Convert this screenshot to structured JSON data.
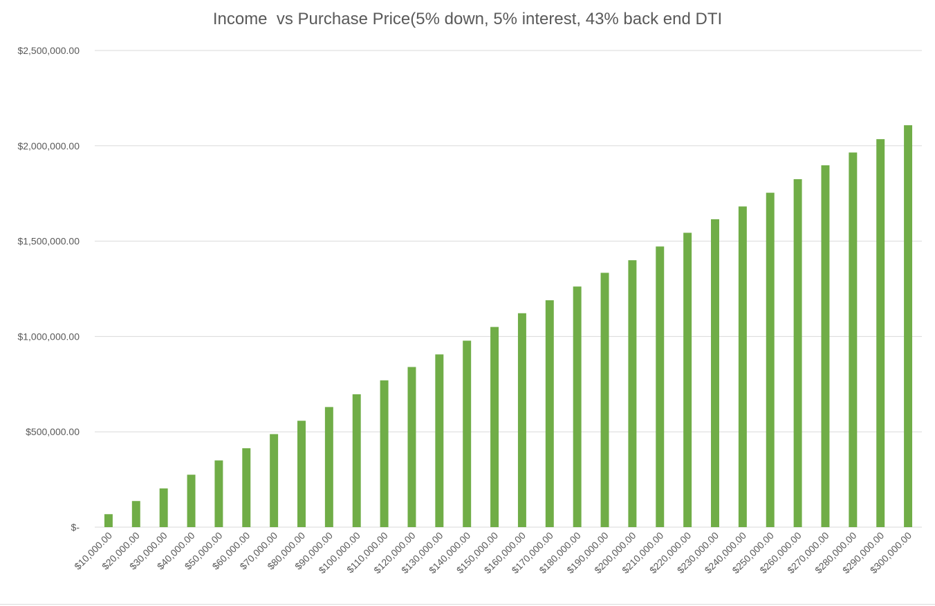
{
  "chart_data": {
    "type": "bar",
    "title": "Income  vs Purchase Price(5% down, 5% interest, 43% back end DTI",
    "xlabel": "",
    "ylabel": "",
    "ylim": [
      0,
      2500000
    ],
    "y_ticks": [
      0,
      500000,
      1000000,
      1500000,
      2000000,
      2500000
    ],
    "y_tick_labels": [
      "$-",
      "$500,000.00",
      "$1,000,000.00",
      "$1,500,000.00",
      "$2,000,000.00",
      "$2,500,000.00"
    ],
    "grid": true,
    "legend": "none",
    "bar_color": "#70ad47",
    "categories": [
      "$10,000.00",
      "$20,000.00",
      "$30,000.00",
      "$40,000.00",
      "$50,000.00",
      "$60,000.00",
      "$70,000.00",
      "$80,000.00",
      "$90,000.00",
      "$100,000.00",
      "$110,000.00",
      "$120,000.00",
      "$130,000.00",
      "$140,000.00",
      "$150,000.00",
      "$160,000.00",
      "$170,000.00",
      "$180,000.00",
      "$190,000.00",
      "$200,000.00",
      "$210,000.00",
      "$220,000.00",
      "$230,000.00",
      "$240,000.00",
      "$250,000.00",
      "$260,000.00",
      "$270,000.00",
      "$280,000.00",
      "$290,000.00",
      "$300,000.00"
    ],
    "values": [
      68000,
      137000,
      203000,
      275000,
      350000,
      414000,
      488000,
      558000,
      630000,
      697000,
      770000,
      840000,
      906000,
      978000,
      1050000,
      1122000,
      1190000,
      1262000,
      1334000,
      1400000,
      1472000,
      1544000,
      1615000,
      1682000,
      1754000,
      1825000,
      1898000,
      1965000,
      2035000,
      2108000
    ]
  }
}
